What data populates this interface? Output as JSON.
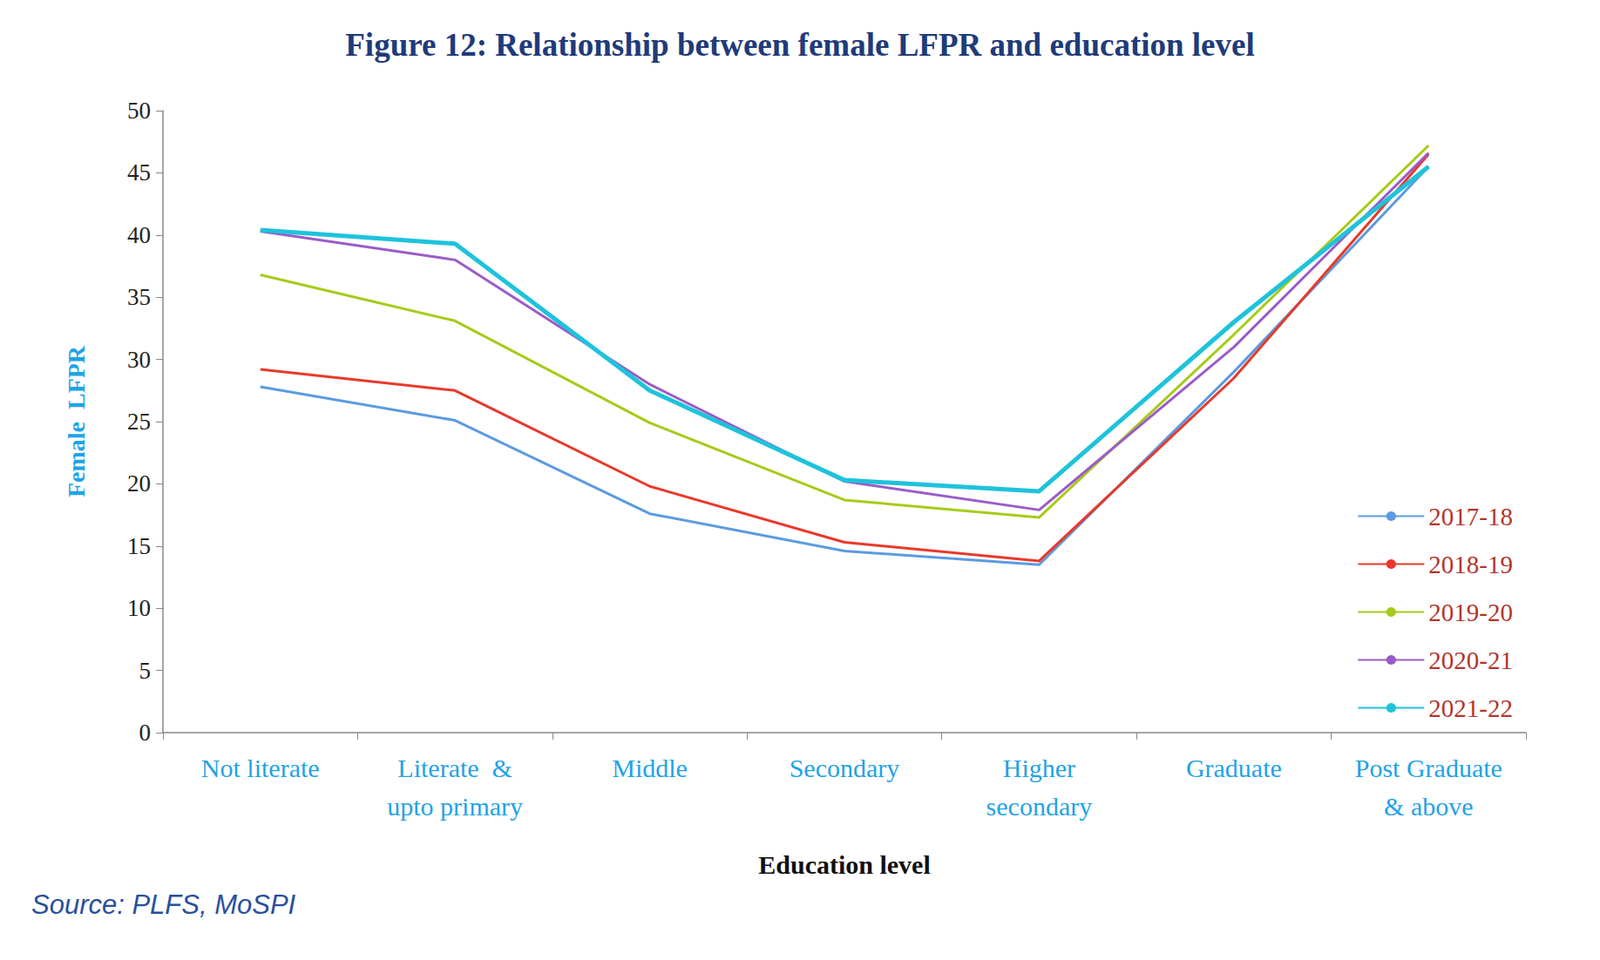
{
  "chart_data": {
    "type": "line",
    "title": "Figure 12: Relationship between female LFPR and education level",
    "x_label": "Education level",
    "y_label": "Female  LFPR",
    "source": "Source: PLFS, MoSPI",
    "categories": [
      "Not literate",
      "Literate  &\nupto primary",
      "Middle",
      "Secondary",
      "Higher\nsecondary",
      "Graduate",
      "Post Graduate\n& above"
    ],
    "series": [
      {
        "name": "2017-18",
        "color": "#5b9be0",
        "values": [
          27.8,
          25.1,
          17.6,
          14.6,
          13.5,
          29.0,
          45.5
        ]
      },
      {
        "name": "2018-19",
        "color": "#e8392b",
        "values": [
          29.2,
          27.5,
          19.8,
          15.3,
          13.8,
          28.5,
          46.5
        ]
      },
      {
        "name": "2019-20",
        "color": "#a6cb1a",
        "values": [
          36.8,
          33.1,
          24.9,
          18.7,
          17.3,
          32.0,
          47.2
        ]
      },
      {
        "name": "2020-21",
        "color": "#9b5bc8",
        "values": [
          40.3,
          38.0,
          28.0,
          20.2,
          17.9,
          31.0,
          46.6
        ]
      },
      {
        "name": "2021-22",
        "color": "#1ec3da",
        "values": [
          40.4,
          39.3,
          27.5,
          20.3,
          19.4,
          33.0,
          45.5
        ]
      }
    ],
    "ylim": [
      0,
      50
    ],
    "yticks": [
      0,
      5,
      10,
      15,
      20,
      25,
      30,
      35,
      40,
      45,
      50
    ],
    "grid": false,
    "legend": "lower right"
  }
}
